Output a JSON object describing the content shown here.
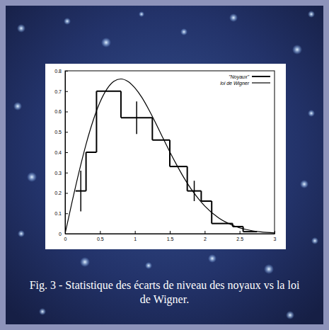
{
  "chart_data": {
    "type": "histogram",
    "title": "Fig. 3 - Statistique des écarts de niveau des noyaux vs la loi de Wigner.",
    "xlim": [
      0,
      3
    ],
    "xticks": [
      0,
      0.5,
      1,
      1.5,
      2,
      2.5,
      3
    ],
    "ylim": [
      0,
      0.8
    ],
    "yticks": [
      0,
      0.1,
      0.2,
      0.3,
      0.4,
      0.5,
      0.6,
      0.7,
      0.8
    ],
    "legend": "top-right",
    "series": [
      {
        "name": "\"Noyaux\"",
        "type": "histogram",
        "color": "#000000",
        "line_style": "solid",
        "bins": [
          0.15,
          0.3,
          0.45,
          0.8,
          1.25,
          1.5,
          1.75,
          1.95,
          2.1,
          2.4,
          2.55,
          2.75
        ],
        "values": [
          0.21,
          0.4,
          0.7,
          0.57,
          0.46,
          0.33,
          0.21,
          0.16,
          0.05,
          0.035,
          0.01
        ],
        "errors": [
          0.1,
          null,
          null,
          0.08,
          null,
          null,
          0.05,
          null,
          null,
          null,
          null
        ]
      },
      {
        "name": "loi de Wigner",
        "type": "line",
        "color": "#000000",
        "line_style": "solid",
        "x": [
          0,
          0.1,
          0.2,
          0.3,
          0.4,
          0.5,
          0.6,
          0.7,
          0.8,
          0.9,
          1.0,
          1.1,
          1.2,
          1.3,
          1.4,
          1.5,
          1.6,
          1.7,
          1.8,
          1.9,
          2.0,
          2.2,
          2.4,
          2.6,
          2.8,
          3.0
        ],
        "values": [
          0,
          0.156,
          0.304,
          0.439,
          0.554,
          0.646,
          0.711,
          0.749,
          0.76,
          0.748,
          0.716,
          0.669,
          0.609,
          0.542,
          0.471,
          0.402,
          0.337,
          0.276,
          0.222,
          0.176,
          0.136,
          0.077,
          0.041,
          0.02,
          0.009,
          0.004
        ]
      }
    ]
  }
}
